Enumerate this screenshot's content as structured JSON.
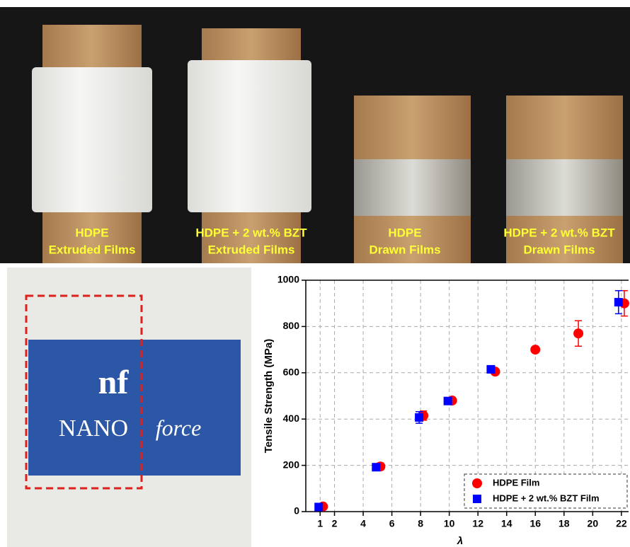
{
  "photo": {
    "labels": [
      {
        "lines": [
          "HDPE",
          "Extruded Films"
        ]
      },
      {
        "lines": [
          "HDPE + 2 wt.% BZT",
          "Extruded Films"
        ]
      },
      {
        "lines": [
          "HDPE",
          "Drawn Films"
        ]
      },
      {
        "lines": [
          "HDPE + 2 wt.% BZT",
          "Drawn Films"
        ]
      }
    ]
  },
  "logo": {
    "mark": "nf",
    "name": "NANO",
    "suffix": "force"
  },
  "chart_data": {
    "type": "scatter",
    "xlabel": "λ",
    "ylabel": "Tensile Strength (MPa)",
    "xlim": [
      0,
      22.5
    ],
    "ylim": [
      0,
      1000
    ],
    "xticks": [
      1,
      2,
      4,
      6,
      8,
      10,
      12,
      14,
      16,
      18,
      20,
      22
    ],
    "yticks": [
      0,
      200,
      400,
      600,
      800,
      1000
    ],
    "grid": true,
    "legend": "lower right",
    "series": [
      {
        "name": "HDPE Film",
        "color": "#ff0000",
        "marker": "circle",
        "x": [
          1.2,
          5.2,
          8.2,
          10.2,
          13.2,
          16,
          19,
          22.2
        ],
        "values": [
          22,
          195,
          415,
          480,
          605,
          700,
          770,
          900
        ],
        "errors": [
          8,
          15,
          20,
          10,
          12,
          8,
          55,
          55
        ]
      },
      {
        "name": "HDPE + 2 wt.% BZT Film",
        "color": "#0000ff",
        "marker": "square",
        "x": [
          0.9,
          4.9,
          7.9,
          9.9,
          12.9,
          21.8
        ],
        "values": [
          20,
          192,
          407,
          478,
          615,
          905
        ],
        "errors": [
          8,
          10,
          25,
          10,
          10,
          50
        ]
      }
    ]
  }
}
